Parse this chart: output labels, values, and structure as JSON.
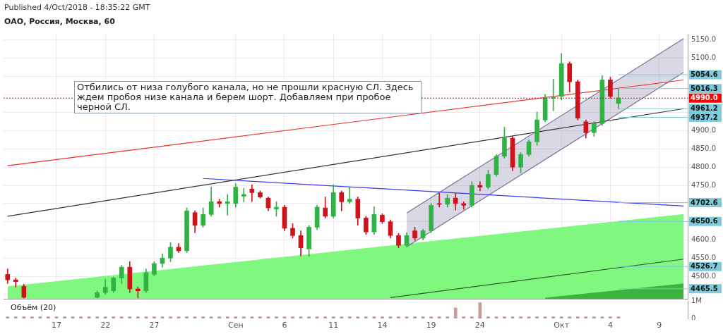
{
  "chart_data": [
    {
      "type": "candlestick",
      "title": "ОАО, Россия, Москва, 60",
      "annotations": [
        "Published 4/Oct/2018 - 18:35:22 GMT",
        "Отбились от низа голубого канала, но не прошли красную СЛ. Здесь ждем пробоя низе канала и берем шорт. Добавляем при пробое черной СЛ."
      ],
      "categories": [
        null,
        null,
        null,
        null,
        null,
        null,
        "17",
        null,
        null,
        null,
        null,
        null,
        "22",
        null,
        null,
        null,
        null,
        null,
        "27",
        null,
        null,
        null,
        null,
        null,
        null,
        null,
        null,
        null,
        "Сен",
        null,
        null,
        null,
        null,
        null,
        "6",
        null,
        null,
        null,
        null,
        null,
        "11",
        null,
        null,
        null,
        null,
        null,
        "14",
        null,
        null,
        null,
        null,
        null,
        "19",
        null,
        null,
        null,
        null,
        null,
        "24",
        null,
        null,
        null,
        null,
        null,
        null,
        null,
        null,
        null,
        "Окт",
        null,
        null,
        null,
        null,
        null,
        "4",
        null,
        null,
        null,
        null,
        null,
        "9",
        null,
        null,
        null
      ],
      "ohlc": [
        [
          4505,
          4520,
          4480,
          4490
        ],
        [
          4490,
          4495,
          4470,
          4485
        ],
        [
          4472,
          4478,
          4440,
          4442
        ],
        null,
        null,
        null,
        null,
        null,
        null,
        null,
        null,
        [
          4442,
          4460,
          4440,
          4455
        ],
        [
          4455,
          4492,
          4450,
          4470
        ],
        [
          4460,
          4498,
          4455,
          4495
        ],
        [
          4495,
          4530,
          4480,
          4525
        ],
        [
          4525,
          4540,
          4455,
          4465
        ],
        [
          4465,
          4470,
          4440,
          4460
        ],
        [
          4460,
          4520,
          4455,
          4510
        ],
        [
          4505,
          4540,
          4500,
          4535
        ],
        [
          4535,
          4562,
          4525,
          4550
        ],
        [
          4550,
          4593,
          4540,
          4580
        ],
        [
          4580,
          4590,
          4565,
          4570
        ],
        [
          4570,
          4688,
          4565,
          4680
        ],
        [
          4675,
          4680,
          4620,
          4640
        ],
        [
          4640,
          4688,
          4635,
          4670
        ],
        [
          4670,
          4745,
          4665,
          4705
        ],
        [
          4705,
          4712,
          4690,
          4700
        ],
        [
          4700,
          4725,
          4668,
          4705
        ],
        [
          4700,
          4755,
          4690,
          4745
        ],
        [
          4720,
          4742,
          4705,
          4725
        ],
        [
          4740,
          4752,
          4705,
          4730
        ],
        [
          4730,
          4735,
          4715,
          4718
        ],
        [
          4715,
          4718,
          4680,
          4688
        ],
        [
          4685,
          4705,
          4665,
          4690
        ],
        [
          4690,
          4695,
          4625,
          4632
        ],
        [
          4632,
          4645,
          4605,
          4612
        ],
        [
          4612,
          4625,
          4556,
          4578
        ],
        [
          4575,
          4640,
          4555,
          4635
        ],
        [
          4635,
          4695,
          4628,
          4690
        ],
        [
          4688,
          4718,
          4660,
          4665
        ],
        [
          4665,
          4752,
          4660,
          4730
        ],
        [
          4730,
          4735,
          4680,
          4705
        ],
        [
          4705,
          4746,
          4700,
          4712
        ],
        [
          4712,
          4718,
          4640,
          4660
        ],
        [
          4660,
          4665,
          4615,
          4622
        ],
        [
          4622,
          4692,
          4615,
          4670
        ],
        [
          4668,
          4672,
          4645,
          4650
        ],
        [
          4650,
          4655,
          4605,
          4612
        ],
        [
          4612,
          4618,
          4578,
          4585
        ],
        [
          4585,
          4620,
          4580,
          4612
        ],
        [
          4625,
          4635,
          4598,
          4605
        ],
        [
          4605,
          4630,
          4600,
          4625
        ],
        [
          4625,
          4700,
          4620,
          4695
        ],
        [
          4700,
          4728,
          4690,
          4698
        ],
        [
          4698,
          4725,
          4690,
          4715
        ],
        [
          4715,
          4728,
          4682,
          4700
        ],
        [
          4700,
          4705,
          4684,
          4695
        ],
        [
          4695,
          4760,
          4690,
          4750
        ],
        [
          4750,
          4760,
          4735,
          4745
        ],
        [
          4745,
          4792,
          4740,
          4780
        ],
        [
          4780,
          4835,
          4775,
          4830
        ],
        [
          4830,
          4910,
          4825,
          4880
        ],
        [
          4880,
          4885,
          4790,
          4800
        ],
        [
          4800,
          4840,
          4784,
          4835
        ],
        [
          4835,
          4875,
          4830,
          4870
        ],
        [
          4870,
          4952,
          4860,
          4930
        ],
        [
          4930,
          5000,
          4925,
          4990
        ],
        [
          4990,
          5042,
          4955,
          4992
        ],
        [
          4995,
          5113,
          4985,
          5085
        ],
        [
          5085,
          5090,
          5007,
          5035
        ],
        [
          5035,
          5040,
          4930,
          4935
        ],
        [
          4925,
          4930,
          4880,
          4895
        ],
        [
          4895,
          4925,
          4885,
          4920
        ],
        [
          4920,
          5052,
          4915,
          5040
        ],
        [
          5040,
          5048,
          4990,
          4995
        ],
        [
          4975,
          5017,
          4960,
          4990
        ],
        null,
        null,
        null,
        null,
        null,
        null,
        null,
        null
      ],
      "colors": [
        "#d0121b",
        "#d0121b",
        "#d0121b",
        null,
        null,
        null,
        null,
        null,
        null,
        null,
        null,
        "#2fb344",
        "#2fb344",
        "#2fb344",
        "#2fb344",
        "#d0121b",
        "#d0121b",
        "#2fb344",
        "#2fb344",
        "#2fb344",
        "#2fb344",
        "#d0121b",
        "#2fb344",
        "#d0121b",
        "#2fb344",
        "#2fb344",
        "#d0121b",
        "#2fb344",
        "#2fb344",
        "#2fb344",
        "#d0121b",
        "#d0121b",
        "#d0121b",
        "#2fb344",
        "#d0121b",
        "#d0121b",
        "#d0121b",
        "#2fb344",
        "#2fb344",
        "#d0121b",
        "#2fb344",
        "#d0121b",
        "#2fb344",
        "#d0121b",
        "#d0121b",
        "#2fb344",
        "#d0121b",
        "#d0121b",
        "#d0121b",
        "#2fb344",
        "#d0121b",
        "#2fb344",
        "#2fb344",
        "#d0121b",
        "#2fb344",
        "#d0121b",
        "#d0121b",
        "#2fb344",
        "#d0121b",
        "#2fb344",
        "#2fb344",
        "#2fb344",
        "#d0121b",
        "#2fb344",
        "#2fb344",
        "#2fb344",
        "#2fb344",
        "#2fb344",
        "#2fb344",
        "#d0121b",
        "#d0121b",
        "#d0121b",
        "#2fb344",
        "#2fb344",
        "#d0121b",
        "#2fb344",
        null,
        null,
        null,
        null,
        null,
        null,
        null,
        null
      ],
      "series": [
        {
          "type": "area",
          "color": "#80f880",
          "values": [
            4471,
            null,
            null,
            null,
            null,
            null,
            null,
            null,
            null,
            null,
            null,
            null,
            null,
            null,
            null,
            null,
            null,
            null,
            null,
            null,
            null,
            null,
            null,
            null,
            null,
            null,
            null,
            null,
            null,
            null,
            null,
            null,
            null,
            null,
            null,
            null,
            null,
            null,
            null,
            null,
            null,
            null,
            null,
            null,
            null,
            null,
            null,
            null,
            null,
            null,
            null,
            null,
            null,
            null,
            null,
            null,
            null,
            null,
            null,
            null,
            null,
            null,
            null,
            null,
            null,
            null,
            null,
            null,
            null,
            null,
            null,
            null,
            null,
            null,
            null,
            null,
            null,
            null,
            null,
            null,
            null,
            null,
            null,
            4670
          ]
        },
        {
          "type": "area",
          "color": "#3cb43c",
          "values": [
            null,
            null,
            null,
            null,
            null,
            null,
            null,
            null,
            null,
            null,
            null,
            null,
            null,
            null,
            null,
            null,
            null,
            null,
            null,
            null,
            null,
            null,
            null,
            null,
            null,
            null,
            null,
            null,
            null,
            null,
            null,
            null,
            null,
            null,
            null,
            null,
            null,
            null,
            null,
            null,
            null,
            null,
            null,
            null,
            null,
            null,
            null,
            null,
            null,
            null,
            null,
            null,
            null,
            null,
            null,
            null,
            null,
            null,
            null,
            null,
            null,
            null,
            null,
            null,
            null,
            null,
            4440,
            null,
            null,
            null,
            null,
            null,
            null,
            null,
            null,
            null,
            null,
            null,
            null,
            null,
            null,
            null,
            null,
            4479
          ]
        },
        {
          "type": "line",
          "color": "#2e5e2e",
          "values": [
            null,
            null,
            null,
            null,
            null,
            null,
            null,
            null,
            null,
            null,
            null,
            null,
            null,
            null,
            null,
            null,
            null,
            null,
            null,
            null,
            null,
            null,
            null,
            null,
            null,
            null,
            null,
            null,
            null,
            null,
            null,
            null,
            null,
            null,
            null,
            null,
            null,
            null,
            null,
            null,
            null,
            null,
            null,
            null,
            null,
            null,
            null,
            4441,
            null,
            null,
            null,
            null,
            null,
            null,
            null,
            null,
            null,
            null,
            null,
            null,
            null,
            null,
            null,
            null,
            null,
            null,
            null,
            null,
            null,
            null,
            null,
            null,
            null,
            null,
            null,
            null,
            null,
            null,
            null,
            null,
            null,
            null,
            null,
            4547
          ]
        },
        {
          "type": "line",
          "color": "#77709a",
          "values": [
            null,
            null,
            null,
            null,
            null,
            null,
            null,
            null,
            null,
            null,
            null,
            null,
            null,
            null,
            null,
            null,
            null,
            null,
            null,
            null,
            null,
            null,
            null,
            null,
            null,
            null,
            null,
            null,
            null,
            null,
            null,
            null,
            null,
            null,
            null,
            null,
            null,
            null,
            null,
            null,
            null,
            null,
            null,
            null,
            null,
            null,
            null,
            null,
            null,
            4581,
            null,
            null,
            null,
            null,
            null,
            null,
            null,
            null,
            null,
            null,
            null,
            null,
            null,
            null,
            null,
            null,
            null,
            null,
            null,
            null,
            null,
            null,
            null,
            null,
            null,
            null,
            null,
            null,
            null,
            null,
            null,
            null,
            null,
            5061
          ],
          "lower": [
            null,
            null,
            null,
            null,
            null,
            null,
            null,
            null,
            null,
            null,
            null,
            null,
            null,
            null,
            null,
            null,
            null,
            null,
            null,
            null,
            null,
            null,
            null,
            null,
            null,
            null,
            null,
            null,
            null,
            null,
            null,
            null,
            null,
            null,
            null,
            null,
            null,
            null,
            null,
            null,
            null,
            null,
            null,
            null,
            null,
            null,
            null,
            null,
            null,
            4581,
            null,
            null,
            null,
            null,
            null,
            null,
            null,
            null,
            null,
            null,
            null,
            null,
            null,
            null,
            null,
            null,
            null,
            null,
            null,
            null,
            null,
            null,
            null,
            null,
            null,
            null,
            null,
            null,
            null,
            null,
            null,
            null,
            null,
            5061
          ],
          "upper": [
            null,
            null,
            null,
            null,
            null,
            null,
            null,
            null,
            null,
            null,
            null,
            null,
            null,
            null,
            null,
            null,
            null,
            null,
            null,
            null,
            null,
            null,
            null,
            null,
            null,
            null,
            null,
            null,
            null,
            null,
            null,
            null,
            null,
            null,
            null,
            null,
            null,
            null,
            null,
            null,
            null,
            null,
            null,
            null,
            null,
            null,
            null,
            null,
            null,
            4674,
            null,
            null,
            null,
            null,
            null,
            null,
            null,
            null,
            null,
            null,
            null,
            null,
            null,
            null,
            null,
            null,
            null,
            null,
            null,
            null,
            null,
            null,
            null,
            null,
            null,
            null,
            null,
            null,
            null,
            null,
            null,
            null,
            null,
            5154
          ]
        },
        {
          "type": "line",
          "color": "#77709a",
          "values": [
            null,
            null,
            null,
            null,
            null,
            null,
            null,
            null,
            null,
            null,
            null,
            null,
            null,
            null,
            null,
            null,
            null,
            null,
            null,
            null,
            null,
            null,
            null,
            null,
            null,
            null,
            null,
            null,
            null,
            null,
            null,
            null,
            null,
            null,
            null,
            null,
            null,
            null,
            null,
            null,
            null,
            null,
            null,
            null,
            null,
            null,
            null,
            null,
            null,
            4674,
            null,
            null,
            null,
            null,
            null,
            null,
            null,
            null,
            null,
            null,
            null,
            null,
            null,
            null,
            null,
            null,
            null,
            null,
            null,
            null,
            null,
            null,
            null,
            null,
            null,
            null,
            null,
            null,
            null,
            null,
            null,
            null,
            null,
            5154
          ]
        },
        {
          "type": "line",
          "color": "#f03030",
          "values": [
            4804,
            null,
            null,
            null,
            null,
            null,
            null,
            null,
            null,
            null,
            null,
            null,
            null,
            null,
            null,
            null,
            null,
            null,
            null,
            null,
            null,
            null,
            null,
            null,
            null,
            null,
            null,
            null,
            null,
            null,
            null,
            null,
            null,
            null,
            null,
            null,
            null,
            null,
            null,
            null,
            null,
            null,
            null,
            null,
            null,
            null,
            null,
            null,
            null,
            null,
            null,
            null,
            null,
            null,
            null,
            null,
            null,
            null,
            null,
            null,
            null,
            null,
            null,
            null,
            null,
            null,
            null,
            null,
            null,
            null,
            null,
            null,
            null,
            null,
            null,
            null,
            null,
            null,
            null,
            null,
            null,
            null,
            null,
            5040
          ]
        },
        {
          "type": "line",
          "color": "#333333",
          "values": [
            4665,
            null,
            null,
            null,
            null,
            null,
            null,
            null,
            null,
            null,
            null,
            null,
            null,
            null,
            null,
            null,
            null,
            null,
            null,
            null,
            null,
            null,
            null,
            null,
            null,
            null,
            null,
            null,
            null,
            null,
            null,
            null,
            null,
            null,
            null,
            null,
            null,
            null,
            null,
            null,
            null,
            null,
            null,
            null,
            null,
            null,
            null,
            null,
            null,
            null,
            null,
            null,
            null,
            null,
            null,
            null,
            null,
            null,
            null,
            null,
            null,
            null,
            null,
            null,
            null,
            null,
            null,
            null,
            null,
            null,
            null,
            null,
            null,
            null,
            null,
            null,
            null,
            null,
            null,
            null,
            null,
            null,
            null,
            4961
          ]
        },
        {
          "type": "line",
          "color": "#3a3af0",
          "values": [
            null,
            null,
            null,
            null,
            null,
            null,
            null,
            null,
            null,
            null,
            null,
            null,
            null,
            null,
            null,
            null,
            null,
            null,
            null,
            null,
            null,
            null,
            null,
            null,
            4769,
            null,
            null,
            null,
            null,
            null,
            null,
            null,
            null,
            null,
            null,
            null,
            null,
            null,
            null,
            null,
            null,
            null,
            null,
            null,
            null,
            null,
            null,
            null,
            null,
            null,
            null,
            null,
            null,
            null,
            null,
            null,
            null,
            null,
            null,
            null,
            null,
            null,
            null,
            null,
            null,
            null,
            null,
            null,
            null,
            null,
            null,
            null,
            null,
            null,
            null,
            null,
            null,
            null,
            null,
            null,
            null,
            null,
            null,
            4693
          ]
        }
      ],
      "ylim": [
        4438,
        5165
      ],
      "yticks": [
        {
          "value": 4450,
          "label": null
        },
        {
          "value": 4500,
          "label": "4500.0"
        },
        {
          "value": 4550,
          "label": "4550.0"
        },
        {
          "value": 4600,
          "label": "4600.0"
        },
        {
          "value": 4650,
          "label": null
        },
        {
          "value": 4700,
          "label": null
        },
        {
          "value": 4750,
          "label": "4750.0"
        },
        {
          "value": 4800,
          "label": "4800.0"
        },
        {
          "value": 4850,
          "label": "4850.0"
        },
        {
          "value": 4900,
          "label": "4900.0"
        },
        {
          "value": 4950,
          "label": null
        },
        {
          "value": 5000,
          "label": null
        },
        {
          "value": 5050,
          "label": null
        },
        {
          "value": 5100,
          "label": "5100.0"
        },
        {
          "value": 5150,
          "label": "5150.0"
        }
      ],
      "ref_lines": [
        {
          "axis": "y",
          "value": 5054.6,
          "label": "5054.6",
          "color": "#7ecbdc",
          "line_style": "solid"
        },
        {
          "axis": "y",
          "value": 5016.3,
          "label": "5016.3",
          "color": "#7ecbdc",
          "line_style": "solid"
        },
        {
          "axis": "y",
          "value": 4990,
          "label": "4990.0",
          "color": "#ff0000",
          "line_style": "dotted"
        },
        {
          "axis": "y",
          "value": 4961.2,
          "label": "4961.2",
          "color": "#7ecbdc",
          "line_style": "solid"
        },
        {
          "axis": "y",
          "value": 4937.2,
          "label": "4937.2",
          "color": "#7ecbdc",
          "line_style": "solid"
        },
        {
          "axis": "y",
          "value": 4702.6,
          "label": "4702.6",
          "color": "#7ecbdc",
          "line_style": "solid"
        },
        {
          "axis": "y",
          "value": 4650.6,
          "label": "4650.6",
          "color": "#7ecbdc",
          "line_style": "solid"
        },
        {
          "axis": "y",
          "value": 4526.7,
          "label": "4526.7",
          "color": "#7ecbdc",
          "line_style": "solid"
        },
        {
          "axis": "y",
          "value": 4465.5,
          "label": "4465.5",
          "color": "#7ecbdc",
          "line_style": "solid"
        }
      ],
      "grid": true
    },
    {
      "type": "bar",
      "title": "Объём (20)",
      "categories": [
        null,
        null,
        null,
        null,
        null,
        null,
        null,
        null,
        null,
        null,
        null,
        null,
        null,
        null,
        null,
        null,
        null,
        null,
        null,
        null,
        null,
        null,
        null,
        null,
        null,
        null,
        null,
        null,
        null,
        null,
        null,
        null,
        null,
        null,
        null,
        null,
        null,
        null,
        null,
        null,
        null,
        null,
        null,
        null,
        null,
        null,
        null,
        null,
        null,
        null,
        null,
        null,
        null,
        null,
        null,
        null,
        null,
        null,
        null,
        null,
        null,
        null,
        null,
        null,
        null,
        null,
        null,
        null,
        null,
        null,
        null,
        null,
        null,
        null,
        null,
        null,
        null,
        null,
        null,
        null,
        null,
        null,
        null,
        null
      ],
      "values": [
        0.1,
        0.1,
        0.1,
        0.1,
        0.1,
        0.1,
        0.1,
        0.1,
        0.1,
        0.1,
        0.1,
        0.1,
        0.1,
        0.1,
        0.1,
        0.1,
        0.1,
        0.1,
        0.1,
        0.1,
        0.1,
        0.1,
        0.1,
        0.1,
        0.1,
        0.1,
        0.1,
        0.1,
        0.1,
        0.1,
        0.1,
        0.1,
        0.1,
        0.1,
        0.1,
        0.1,
        0.1,
        0.1,
        0.1,
        0.1,
        0.1,
        0.1,
        0.1,
        0.1,
        0.1,
        0.1,
        0.1,
        0.1,
        0.1,
        0.1,
        0.1,
        0.1,
        0.1,
        0.1,
        0.1,
        0.6,
        0.1,
        0.1,
        0.9,
        0.1,
        0.1,
        0.1,
        0.1,
        0.1,
        0.1,
        0.1,
        0.1,
        0.1,
        0.1,
        0.1,
        0.1,
        0.1,
        0.1,
        0.1,
        0.1,
        0.1,
        null,
        null,
        null,
        null,
        null,
        null,
        null,
        null
      ],
      "color": "#c99a9a",
      "ylim": [
        0,
        1
      ],
      "yticks": [
        0,
        {
          "value": 1,
          "label": "1M"
        }
      ],
      "tick_labels": "y"
    }
  ]
}
